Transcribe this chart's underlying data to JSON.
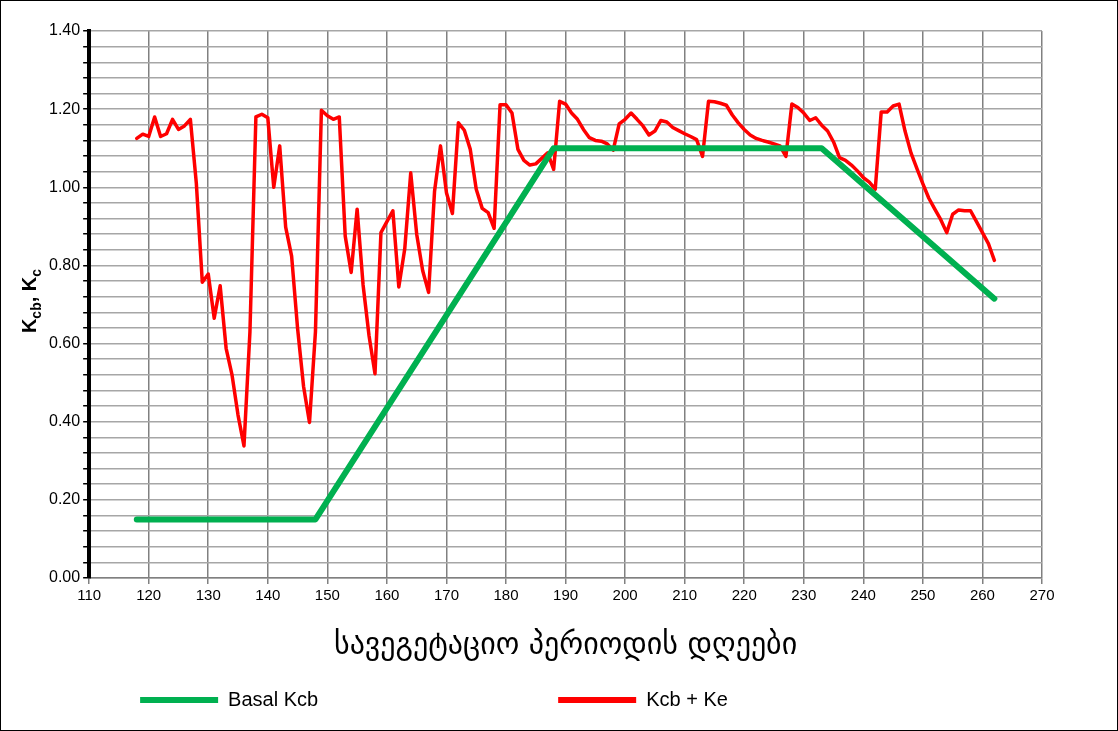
{
  "chart_data": {
    "type": "line",
    "xlabel": "სავეგეტაციო პერიოდის დღეები",
    "ylabel": "K$_{cb}$, K$_{c}$",
    "xlim": [
      110,
      270
    ],
    "xticks": [
      110,
      120,
      130,
      140,
      150,
      160,
      170,
      180,
      190,
      200,
      210,
      220,
      230,
      240,
      250,
      260,
      270
    ],
    "ylim": [
      0,
      1.4
    ],
    "yticks": [
      {
        "value": 0,
        "label": "0.00"
      },
      {
        "value": 0.04,
        "label": null
      },
      {
        "value": 0.08,
        "label": null
      },
      {
        "value": 0.12,
        "label": null
      },
      {
        "value": 0.16,
        "label": null
      },
      {
        "value": 0.2,
        "label": "0.20"
      },
      {
        "value": 0.24,
        "label": null
      },
      {
        "value": 0.28,
        "label": null
      },
      {
        "value": 0.32,
        "label": null
      },
      {
        "value": 0.36,
        "label": null
      },
      {
        "value": 0.4,
        "label": "0.40"
      },
      {
        "value": 0.44,
        "label": null
      },
      {
        "value": 0.48,
        "label": null
      },
      {
        "value": 0.52,
        "label": null
      },
      {
        "value": 0.56,
        "label": null
      },
      {
        "value": 0.6,
        "label": "0.60"
      },
      {
        "value": 0.64,
        "label": null
      },
      {
        "value": 0.68,
        "label": null
      },
      {
        "value": 0.72,
        "label": null
      },
      {
        "value": 0.76,
        "label": null
      },
      {
        "value": 0.8,
        "label": "0.80"
      },
      {
        "value": 0.84,
        "label": null
      },
      {
        "value": 0.88,
        "label": null
      },
      {
        "value": 0.92,
        "label": null
      },
      {
        "value": 0.96,
        "label": null
      },
      {
        "value": 1.0,
        "label": "1.00"
      },
      {
        "value": 1.04,
        "label": null
      },
      {
        "value": 1.08,
        "label": null
      },
      {
        "value": 1.12,
        "label": null
      },
      {
        "value": 1.16,
        "label": null
      },
      {
        "value": 1.2,
        "label": "1.20"
      },
      {
        "value": 1.24,
        "label": null
      },
      {
        "value": 1.28,
        "label": null
      },
      {
        "value": 1.32,
        "label": null
      },
      {
        "value": 1.36,
        "label": null
      },
      {
        "value": 1.4,
        "label": "1.40"
      }
    ],
    "grid": true,
    "legend": "bottom",
    "marker": "none",
    "series": [
      {
        "name": "Basal Kcb",
        "color": "#00b050",
        "x": [
          118,
          148,
          188,
          233,
          262
        ],
        "values": [
          0.15,
          0.15,
          1.1,
          1.1,
          0.715
        ]
      },
      {
        "name": "Kcb + Ke",
        "color": "#ff0000",
        "x": [
          118,
          119,
          120,
          121,
          122,
          123,
          124,
          125,
          126,
          127,
          128,
          129,
          130,
          131,
          132,
          133,
          134,
          135,
          136,
          137,
          138,
          139,
          140,
          141,
          142,
          143,
          144,
          145,
          146,
          147,
          148,
          149,
          150,
          151,
          152,
          153,
          154,
          155,
          156,
          157,
          158,
          159,
          160,
          161,
          162,
          163,
          164,
          165,
          166,
          167,
          168,
          169,
          170,
          171,
          172,
          173,
          174,
          175,
          176,
          177,
          178,
          179,
          180,
          181,
          182,
          183,
          184,
          185,
          186,
          187,
          188,
          189,
          190,
          191,
          192,
          193,
          194,
          195,
          196,
          197,
          198,
          199,
          200,
          201,
          202,
          203,
          204,
          205,
          206,
          207,
          208,
          209,
          210,
          211,
          212,
          213,
          214,
          215,
          216,
          217,
          218,
          219,
          220,
          221,
          222,
          223,
          224,
          225,
          226,
          227,
          228,
          229,
          230,
          231,
          232,
          233,
          234,
          235,
          236,
          237,
          238,
          239,
          240,
          241,
          242,
          243,
          244,
          245,
          246,
          247,
          248,
          249,
          250,
          251,
          252,
          253,
          254,
          255,
          256,
          257,
          258,
          259,
          260,
          261,
          262
        ],
        "values": [
          1.125,
          1.136,
          1.13,
          1.18,
          1.13,
          1.137,
          1.174,
          1.148,
          1.157,
          1.174,
          1.01,
          0.757,
          0.778,
          0.665,
          0.748,
          0.588,
          0.519,
          0.417,
          0.338,
          0.63,
          1.18,
          1.187,
          1.178,
          1.0,
          1.106,
          0.898,
          0.824,
          0.639,
          0.491,
          0.398,
          0.63,
          1.197,
          1.183,
          1.174,
          1.18,
          0.875,
          0.782,
          0.944,
          0.75,
          0.62,
          0.523,
          0.884,
          0.912,
          0.94,
          0.745,
          0.843,
          1.037,
          0.88,
          0.787,
          0.731,
          0.99,
          1.106,
          0.986,
          0.933,
          1.165,
          1.146,
          1.097,
          0.995,
          0.946,
          0.935,
          0.895,
          1.211,
          1.211,
          1.19,
          1.097,
          1.069,
          1.057,
          1.06,
          1.074,
          1.088,
          1.046,
          1.22,
          1.213,
          1.19,
          1.174,
          1.148,
          1.127,
          1.12,
          1.118,
          1.111,
          1.095,
          1.162,
          1.174,
          1.19,
          1.174,
          1.157,
          1.134,
          1.144,
          1.171,
          1.167,
          1.153,
          1.145,
          1.137,
          1.13,
          1.122,
          1.079,
          1.22,
          1.219,
          1.215,
          1.21,
          1.185,
          1.165,
          1.148,
          1.134,
          1.125,
          1.12,
          1.116,
          1.111,
          1.106,
          1.079,
          1.213,
          1.204,
          1.19,
          1.171,
          1.178,
          1.159,
          1.144,
          1.116,
          1.076,
          1.069,
          1.057,
          1.042,
          1.025,
          1.013,
          0.995,
          1.193,
          1.193,
          1.208,
          1.213,
          1.144,
          1.088,
          1.048,
          1.009,
          0.972,
          0.944,
          0.917,
          0.884,
          0.931,
          0.942,
          0.94,
          0.94,
          0.912,
          0.884,
          0.856,
          0.813
        ]
      }
    ]
  }
}
